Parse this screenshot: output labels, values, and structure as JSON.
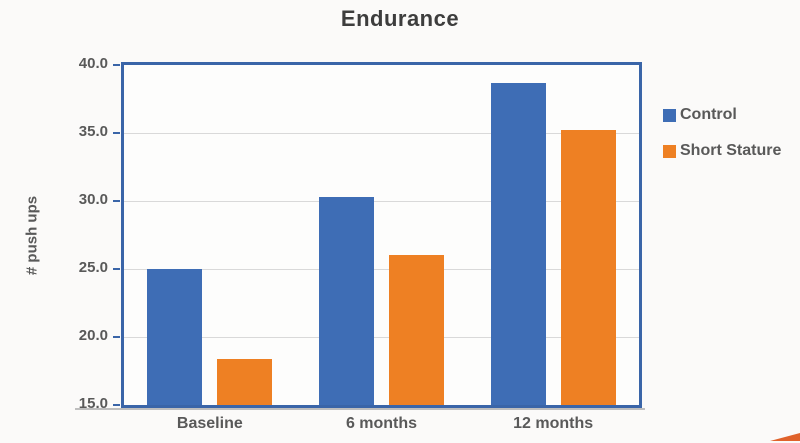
{
  "chart_data": {
    "type": "bar",
    "title": "Endurance",
    "xlabel": "",
    "ylabel": "# push ups",
    "categories": [
      "Baseline",
      "6 months",
      "12 months"
    ],
    "series": [
      {
        "name": "Control",
        "color": "#3e6db5",
        "values": [
          25.0,
          30.3,
          38.7
        ]
      },
      {
        "name": "Short Stature",
        "color": "#ee8023",
        "values": [
          18.4,
          26.0,
          35.2
        ]
      }
    ],
    "ylim": [
      15.0,
      40.0
    ],
    "yticks": [
      15.0,
      20.0,
      25.0,
      30.0,
      35.0,
      40.0
    ],
    "ytick_labels": [
      "15.0",
      "20.0",
      "25.0",
      "30.0",
      "35.0",
      "40.0"
    ],
    "grid": "horizontal",
    "legend_position": "right"
  },
  "colors": {
    "plot_border": "#3a65a8",
    "gridline": "#d9d9d9",
    "axis_shadow": "#a9a9a9",
    "tick": "#3a65a8",
    "text": "#595959",
    "title_text": "#3d3d3d",
    "artifact_orange": "#e0622b",
    "background": "#fbfaf9"
  }
}
